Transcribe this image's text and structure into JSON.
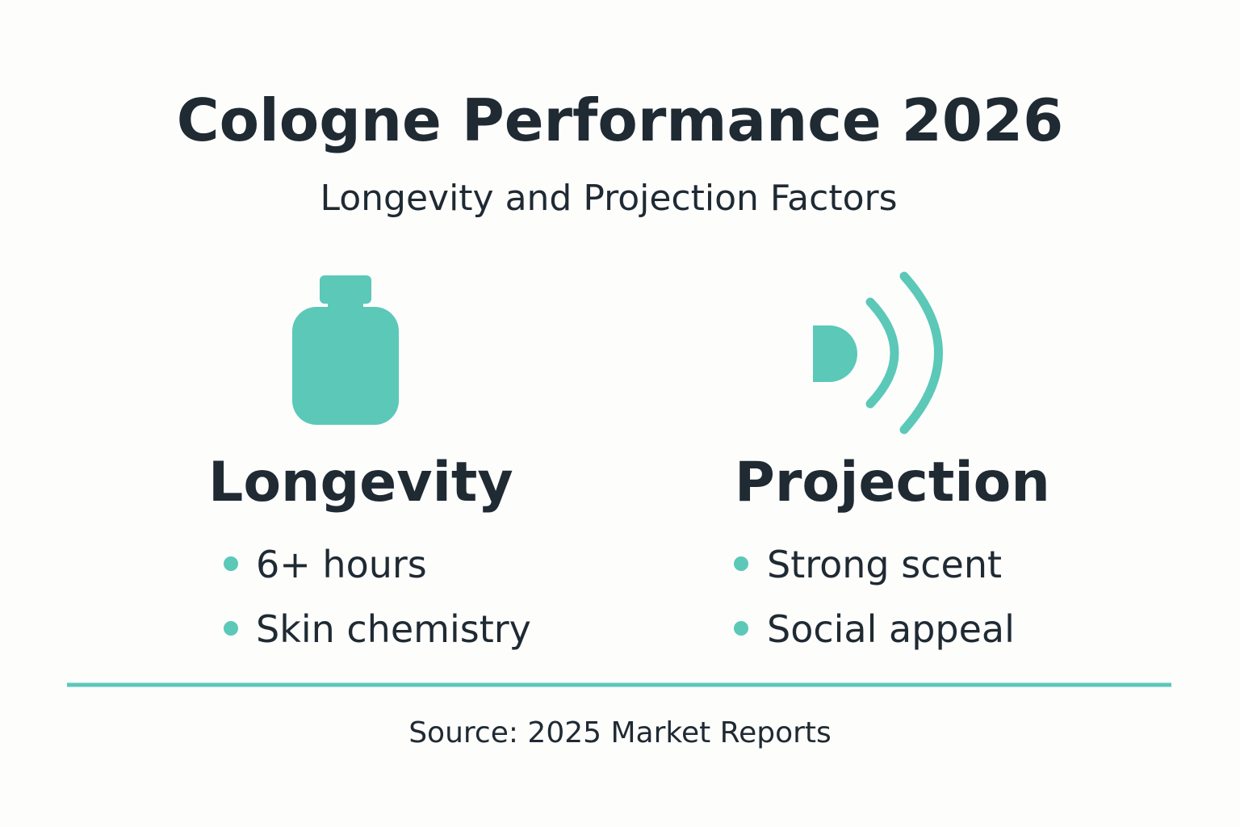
{
  "header": {
    "title": "Cologne Performance 2026",
    "subtitle": "Longevity and Projection Factors"
  },
  "columns": [
    {
      "heading": "Longevity",
      "items": [
        "6+ hours",
        "Skin chemistry"
      ]
    },
    {
      "heading": "Projection",
      "items": [
        "Strong scent",
        "Social appeal"
      ]
    }
  ],
  "footer": {
    "source": "Source: 2025 Market Reports"
  }
}
